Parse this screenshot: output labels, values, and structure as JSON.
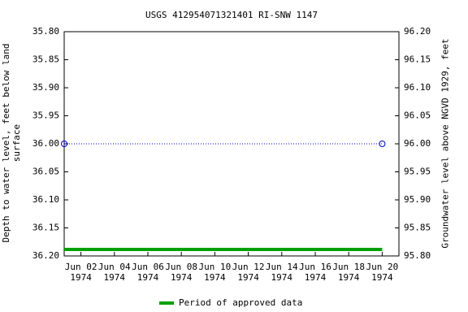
{
  "chart_data": {
    "type": "line",
    "title": "USGS 412954071321401 RI-SNW 1147",
    "ylabel": "Depth to water level, feet below land\nsurface",
    "y2label": "Groundwater level above NGVD 1929, feet",
    "x": [
      "1974-06-01",
      "1974-06-20"
    ],
    "xlim": [
      "1974-06-01",
      "1974-06-21"
    ],
    "xticks": [
      {
        "value": "1974-06-02",
        "label": "Jun 02\n1974"
      },
      {
        "value": "1974-06-04",
        "label": "Jun 04\n1974"
      },
      {
        "value": "1974-06-06",
        "label": "Jun 06\n1974"
      },
      {
        "value": "1974-06-08",
        "label": "Jun 08\n1974"
      },
      {
        "value": "1974-06-10",
        "label": "Jun 10\n1974"
      },
      {
        "value": "1974-06-12",
        "label": "Jun 12\n1974"
      },
      {
        "value": "1974-06-14",
        "label": "Jun 14\n1974"
      },
      {
        "value": "1974-06-16",
        "label": "Jun 16\n1974"
      },
      {
        "value": "1974-06-18",
        "label": "Jun 18\n1974"
      },
      {
        "value": "1974-06-20",
        "label": "Jun 20\n1974"
      }
    ],
    "ylim": [
      35.8,
      36.2
    ],
    "yticks": [
      {
        "value": 35.8,
        "label": "35.80"
      },
      {
        "value": 35.85,
        "label": "35.85"
      },
      {
        "value": 35.9,
        "label": "35.90"
      },
      {
        "value": 35.95,
        "label": "35.95"
      },
      {
        "value": 36.0,
        "label": "36.00"
      },
      {
        "value": 36.05,
        "label": "36.05"
      },
      {
        "value": 36.1,
        "label": "36.10"
      },
      {
        "value": 36.15,
        "label": "36.15"
      },
      {
        "value": 36.2,
        "label": "36.20"
      }
    ],
    "y_inverted": true,
    "y2lim": [
      96.2,
      95.8
    ],
    "y2ticks": [
      {
        "value": 96.2,
        "label": "96.20"
      },
      {
        "value": 96.15,
        "label": "96.15"
      },
      {
        "value": 96.1,
        "label": "96.10"
      },
      {
        "value": 96.05,
        "label": "96.05"
      },
      {
        "value": 96.0,
        "label": "96.00"
      },
      {
        "value": 95.95,
        "label": "95.95"
      },
      {
        "value": 95.9,
        "label": "95.90"
      },
      {
        "value": 95.85,
        "label": "95.85"
      },
      {
        "value": 95.8,
        "label": "95.80"
      }
    ],
    "series": [
      {
        "values": [
          36.0,
          36.0
        ],
        "color": "#0000cc"
      }
    ],
    "period": {
      "name": "Period of approved data",
      "x": [
        "1974-06-01",
        "1974-06-20"
      ],
      "color": "#00a000"
    }
  }
}
